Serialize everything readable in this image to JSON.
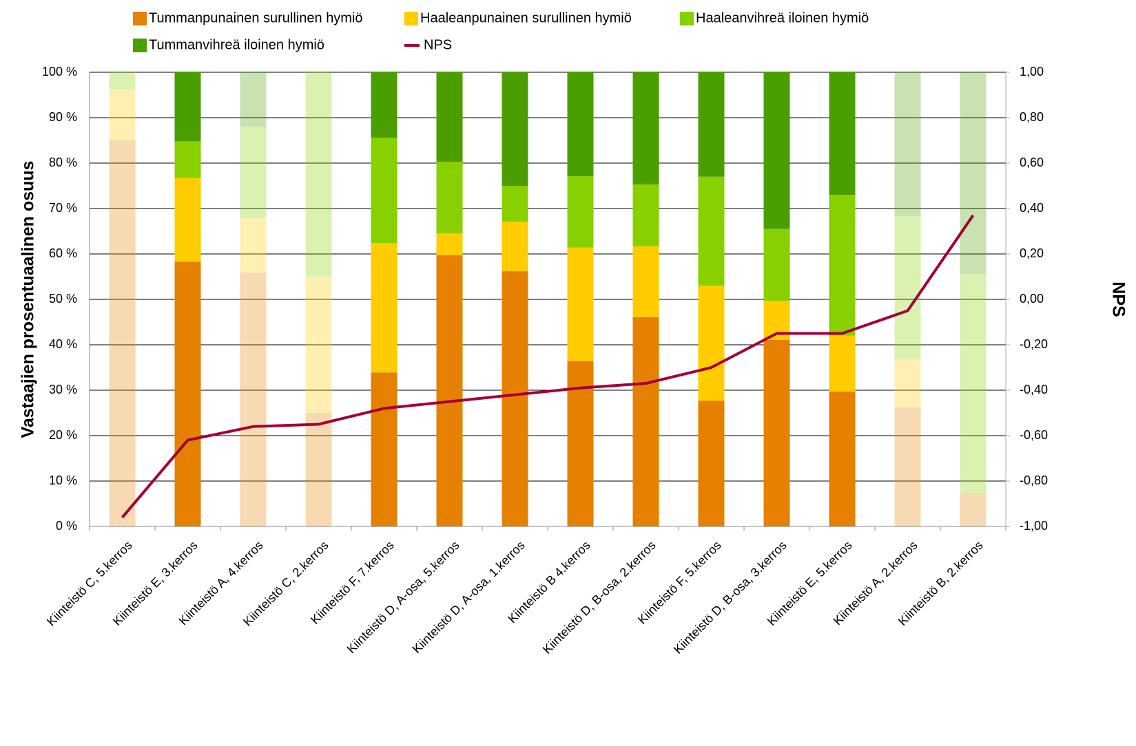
{
  "chart_data": {
    "type": "bar",
    "y_label": "Vastaajien prosentuaalinen osuus",
    "y2_label": "NPS",
    "categories": [
      "Kiinteistö C, 5.kerros",
      "Kiinteistö E, 3.kerros",
      "Kiinteistö A, 4.kerros",
      "Kiinteistö C, 2.kerros",
      "Kiinteistö F, 7.kerros",
      "Kiinteistö D, A-osa, 5.kerros",
      "Kiinteistö D, A-osa, 1.kerros",
      "Kiinteistö B 4.kerros",
      "Kiinteistö D, B-osa, 2.kerros",
      "Kiinteistö F, 5.kerros",
      "Kiinteistö D, B-osa, 3.kerros",
      "Kiinteistö E, 5.kerros",
      "Kiinteistö A, 2.kerros",
      "Kiinteistö B, 2.kerros"
    ],
    "faded": [
      true,
      false,
      true,
      true,
      false,
      false,
      false,
      false,
      false,
      false,
      false,
      false,
      true,
      true
    ],
    "stacked": true,
    "legend": "top",
    "grid": true,
    "series": [
      {
        "name": "Tummanpunainen surullinen hymiö",
        "color": "#e58000",
        "values": [
          85,
          58.3,
          55.9,
          25,
          33.9,
          59.7,
          56.2,
          36.4,
          46.1,
          27.7,
          41.1,
          29.7,
          26.2,
          7.4
        ]
      },
      {
        "name": "Haaleanpunainen surullinen hymiö",
        "color": "#ffcc00",
        "values": [
          11.2,
          18.4,
          12,
          30,
          28.5,
          4.8,
          10.9,
          25,
          15.6,
          25.3,
          8.6,
          12.3,
          10.6,
          0
        ]
      },
      {
        "name": "Haaleanvihreä iloinen hymiö",
        "color": "#88d000",
        "values": [
          3.8,
          8.1,
          20.1,
          45,
          23.2,
          15.8,
          7.9,
          15.7,
          13.6,
          24,
          15.8,
          31,
          31.5,
          48.2
        ]
      },
      {
        "name": "Tummanvihreä iloinen hymiö",
        "color": "#4a9e00",
        "values": [
          0,
          15.2,
          12,
          0,
          14.4,
          19.7,
          25,
          22.9,
          24.7,
          23,
          34.5,
          27,
          31.7,
          44.4
        ]
      },
      {
        "name": "NPS",
        "type": "line",
        "axis": "y2",
        "color": "#a50036",
        "values": [
          -0.96,
          -0.62,
          -0.56,
          -0.55,
          -0.48,
          -0.45,
          -0.42,
          -0.39,
          -0.37,
          -0.3,
          -0.15,
          -0.15,
          -0.05,
          0.37
        ]
      }
    ],
    "ylim": [
      0,
      100
    ],
    "yticks": [
      {
        "value": 0,
        "label": "0 %"
      },
      {
        "value": 10,
        "label": "10 %"
      },
      {
        "value": 20,
        "label": "20 %"
      },
      {
        "value": 30,
        "label": "30 %"
      },
      {
        "value": 40,
        "label": "40 %"
      },
      {
        "value": 50,
        "label": "50 %"
      },
      {
        "value": 60,
        "label": "60 %"
      },
      {
        "value": 70,
        "label": "70 %"
      },
      {
        "value": 80,
        "label": "80 %"
      },
      {
        "value": 90,
        "label": "90 %"
      },
      {
        "value": 100,
        "label": "100 %"
      }
    ],
    "y2lim": [
      -1,
      1
    ],
    "y2ticks": [
      {
        "value": -1,
        "label": "-1,00"
      },
      {
        "value": -0.8,
        "label": "-0,80"
      },
      {
        "value": -0.6,
        "label": "-0,60"
      },
      {
        "value": -0.4,
        "label": "-0,40"
      },
      {
        "value": -0.2,
        "label": "-0,20"
      },
      {
        "value": 0,
        "label": "0,00"
      },
      {
        "value": 0.2,
        "label": "0,20"
      },
      {
        "value": 0.4,
        "label": "0,40"
      },
      {
        "value": 0.6,
        "label": "0,60"
      },
      {
        "value": 0.8,
        "label": "0,80"
      },
      {
        "value": 1,
        "label": "1,00"
      }
    ]
  }
}
